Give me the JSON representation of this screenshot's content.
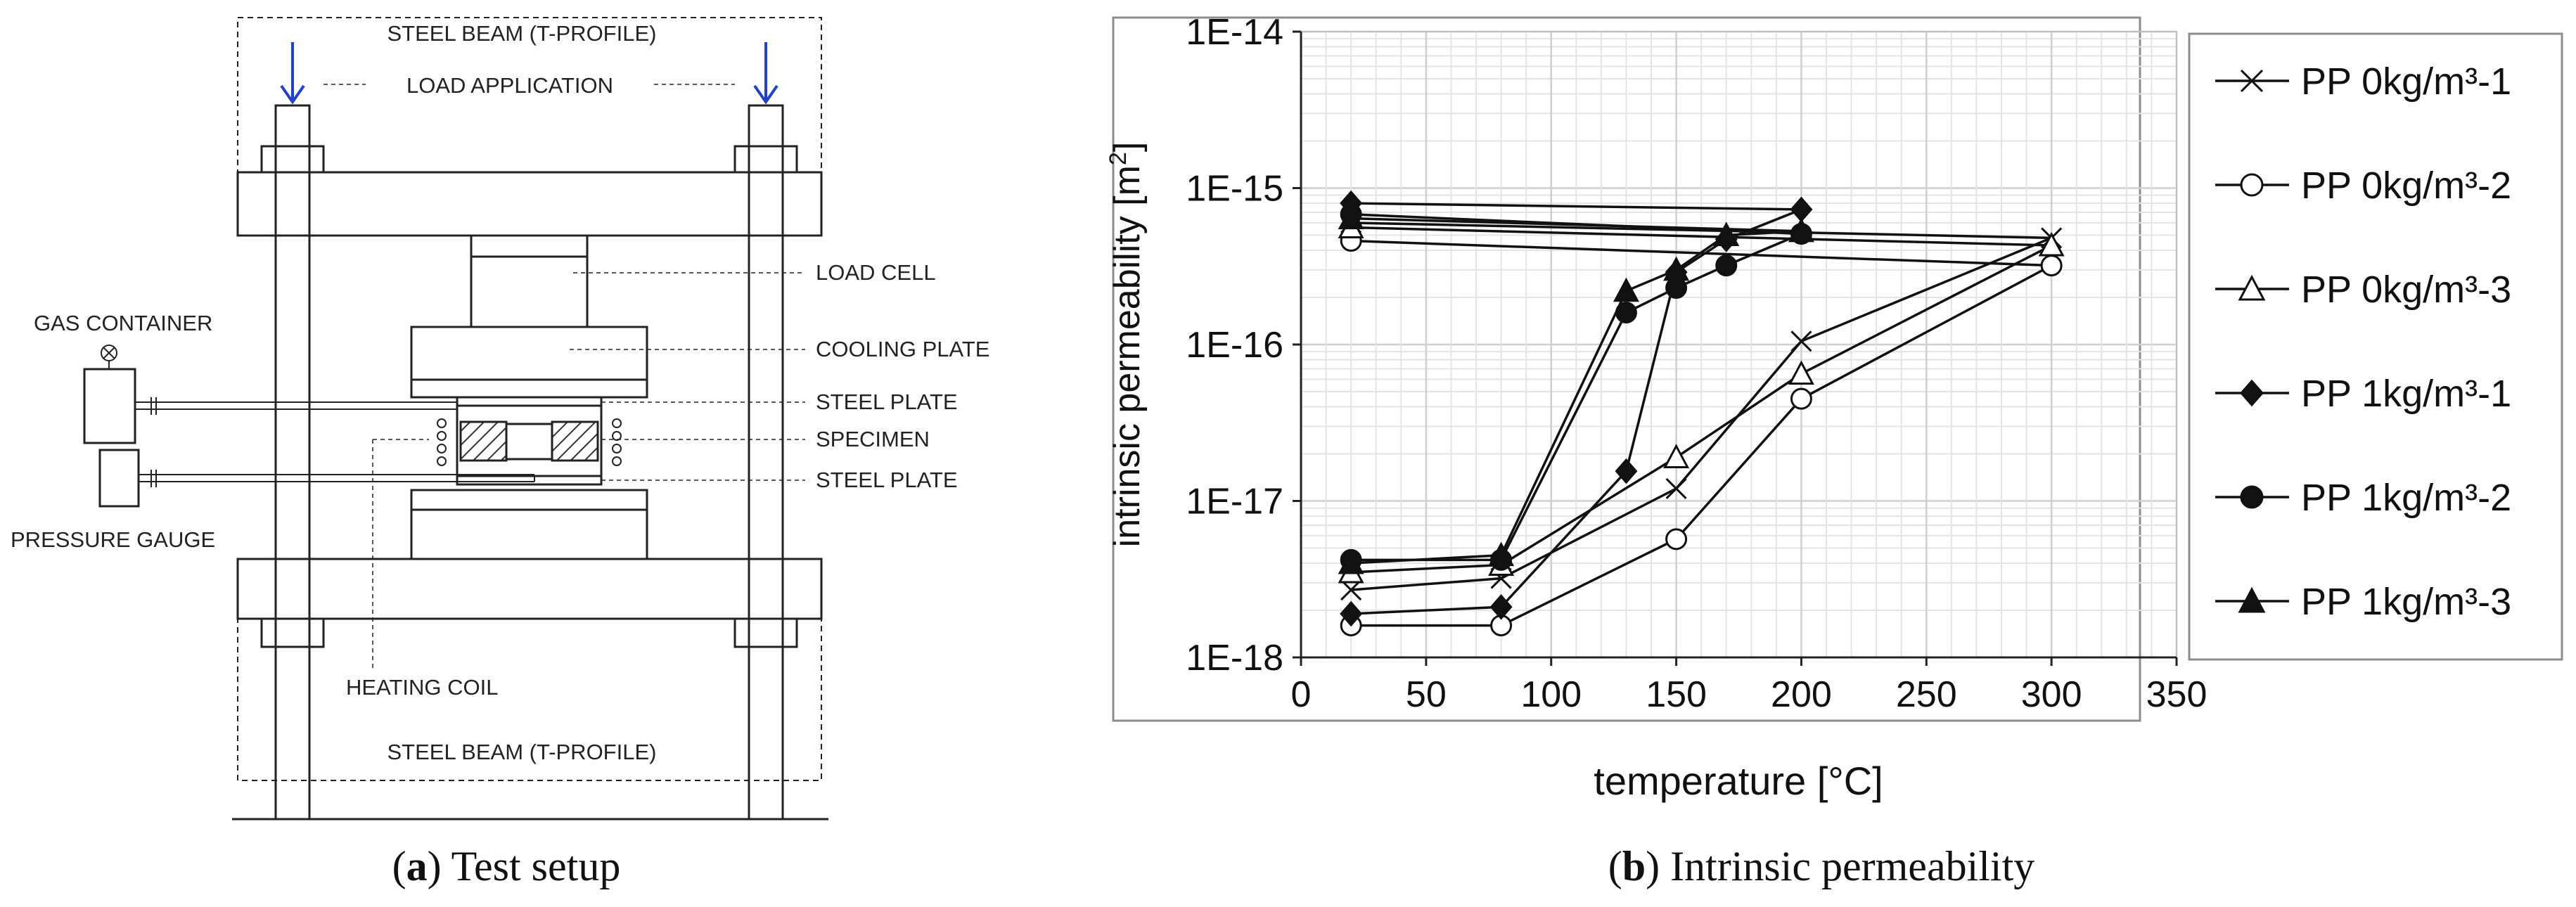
{
  "setup": {
    "caption_letter": "a",
    "caption_title": "Test setup",
    "labels": {
      "steel_beam_top": "STEEL BEAM (T-PROFILE)",
      "load_application": "LOAD APPLICATION",
      "load_cell": "LOAD CELL",
      "gas_container": "GAS CONTAINER",
      "cooling_plate": "COOLING PLATE",
      "steel_plate_top": "STEEL PLATE",
      "specimen": "SPECIMEN",
      "steel_plate_bottom": "STEEL PLATE",
      "pressure_gauge": "PRESSURE GAUGE",
      "heating_coil": "HEATING COIL",
      "steel_beam_bottom": "STEEL BEAM (T-PROFILE)"
    }
  },
  "chart_data": {
    "type": "line",
    "caption_letter": "b",
    "caption_title": "Intrinsic permeability",
    "xlabel": "temperature [°C]",
    "ylabel_main": "intrinsic permeability [m",
    "ylabel_sup": "2",
    "ylabel_close": "]",
    "xlim": [
      0,
      350
    ],
    "ylim": [
      1e-18,
      1e-14
    ],
    "yscale": "log",
    "grid": true,
    "legend_position": "right",
    "x_ticks": [
      "0",
      "50",
      "100",
      "150",
      "200",
      "250",
      "300",
      "350"
    ],
    "y_ticks": [
      "1E-18",
      "1E-17",
      "1E-16",
      "1E-15",
      "1E-14"
    ],
    "series": [
      {
        "name": "PP 0kg/m³-1",
        "marker": "x",
        "x": [
          20,
          80,
          150,
          200,
          300,
          20
        ],
        "values": [
          2.7e-18,
          3.2e-18,
          1.2e-17,
          1.05e-16,
          4.8e-16,
          6e-16
        ]
      },
      {
        "name": "PP 0kg/m³-2",
        "marker": "circle-open",
        "x": [
          20,
          80,
          150,
          200,
          300,
          20
        ],
        "values": [
          1.6e-18,
          1.6e-18,
          5.7e-18,
          4.5e-17,
          3.2e-16,
          4.6e-16
        ]
      },
      {
        "name": "PP 0kg/m³-3",
        "marker": "triangle-open",
        "x": [
          20,
          80,
          150,
          200,
          300,
          20
        ],
        "values": [
          3.5e-18,
          3.9e-18,
          1.9e-17,
          6.5e-17,
          4.3e-16,
          5.6e-16
        ]
      },
      {
        "name": "PP 1kg/m³-1",
        "marker": "diamond",
        "x": [
          20,
          80,
          130,
          150,
          170,
          200,
          20
        ],
        "values": [
          1.9e-18,
          2.1e-18,
          1.55e-17,
          2.9e-16,
          4.7e-16,
          7.3e-16,
          8e-16
        ]
      },
      {
        "name": "PP 1kg/m³-2",
        "marker": "circle",
        "x": [
          20,
          80,
          130,
          150,
          170,
          200,
          20
        ],
        "values": [
          4.2e-18,
          4.2e-18,
          1.6e-16,
          2.3e-16,
          3.2e-16,
          5.1e-16,
          6.8e-16
        ]
      },
      {
        "name": "PP 1kg/m³-3",
        "marker": "triangle",
        "x": [
          20,
          80,
          130,
          150,
          170,
          200,
          20
        ],
        "values": [
          4e-18,
          4.5e-18,
          2.2e-16,
          3e-16,
          5e-16,
          5.3e-16,
          6.4e-16
        ]
      }
    ]
  }
}
